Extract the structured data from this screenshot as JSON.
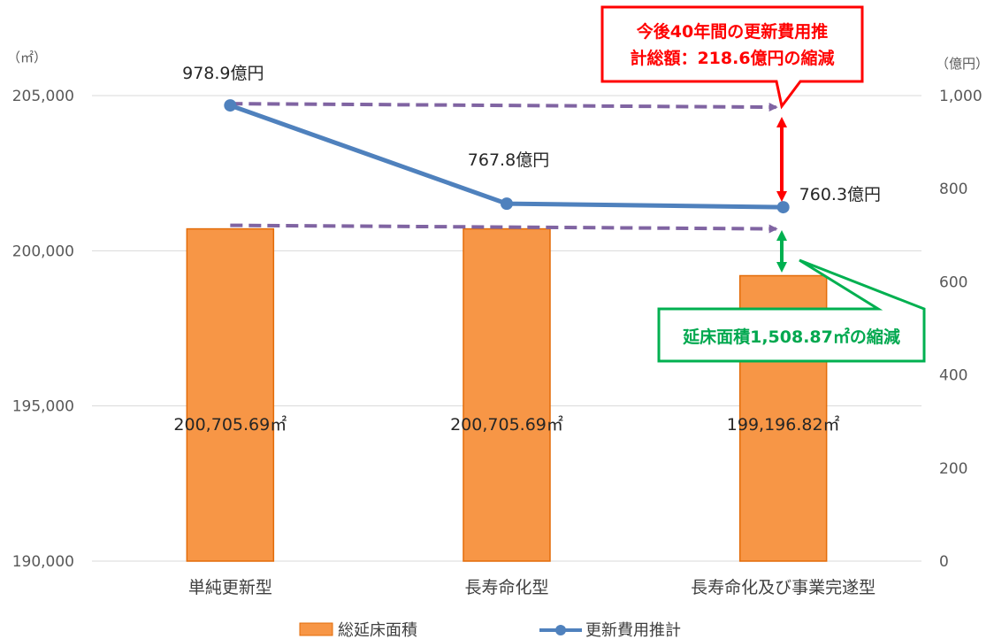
{
  "chart_data": {
    "type": "bar",
    "categories": [
      "単純更新型",
      "長寿命化型",
      "長寿命化及び事業完遂型"
    ],
    "series": [
      {
        "name": "総延床面積",
        "kind": "bar",
        "axis": "left",
        "values": [
          200705.69,
          200705.69,
          199196.82
        ],
        "labels": [
          "200,705.69㎡",
          "200,705.69㎡",
          "199,196.82㎡"
        ],
        "color": "#f79646"
      },
      {
        "name": "更新費用推計",
        "kind": "line",
        "axis": "right",
        "values": [
          978.9,
          767.8,
          760.3
        ],
        "labels": [
          "978.9億円",
          "767.8億円",
          "760.3億円"
        ],
        "color": "#4f81bd"
      }
    ],
    "y_left": {
      "unit": "（㎡）",
      "min": 190000,
      "max": 205000,
      "ticks": [
        190000,
        195000,
        200000,
        205000
      ],
      "tick_labels": [
        "190,000",
        "195,000",
        "200,000",
        "205,000"
      ]
    },
    "y_right": {
      "unit": "（億円）",
      "min": 0,
      "max": 1000,
      "ticks": [
        0,
        200,
        400,
        600,
        800,
        1000
      ],
      "tick_labels": [
        "0",
        "200",
        "400",
        "600",
        "800",
        "1,000"
      ]
    },
    "grid": true,
    "legend_position": "bottom",
    "annotations": [
      {
        "text_lines": [
          "今後40年間の更新費用推",
          "計総額：218.6億円の縮減"
        ],
        "color": "#ff0000"
      },
      {
        "text_lines": [
          "延床面積1,508.87㎡の縮減"
        ],
        "color": "#00b050"
      }
    ],
    "dashed_arrow_color": "#8064a2"
  }
}
